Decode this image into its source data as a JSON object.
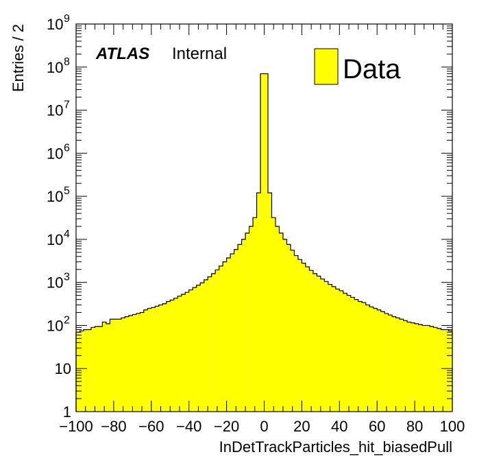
{
  "chart_data": {
    "type": "bar",
    "title": "",
    "xlabel": "InDetTrackParticles_hit_biasedPull",
    "ylabel": "Entries / 2",
    "xlim": [
      -100,
      100
    ],
    "ylim": [
      1,
      1000000000
    ],
    "yscale": "log",
    "bin_width": 2,
    "fill_color": "#ffff00",
    "line_color": "#000000",
    "x_ticks": [
      -100,
      -80,
      -60,
      -40,
      -20,
      0,
      20,
      40,
      60,
      80,
      100
    ],
    "x_tick_labels": [
      "−100",
      "−80",
      "−60",
      "−40",
      "−20",
      "0",
      "20",
      "40",
      "60",
      "80",
      "100"
    ],
    "y_ticks": [
      {
        "value": 1,
        "base": "1",
        "exp": ""
      },
      {
        "value": 10,
        "base": "10",
        "exp": ""
      },
      {
        "value": 100,
        "base": "10",
        "exp": "2"
      },
      {
        "value": 1000,
        "base": "10",
        "exp": "3"
      },
      {
        "value": 10000,
        "base": "10",
        "exp": "4"
      },
      {
        "value": 100000,
        "base": "10",
        "exp": "5"
      },
      {
        "value": 1000000,
        "base": "10",
        "exp": "6"
      },
      {
        "value": 10000000,
        "base": "10",
        "exp": "7"
      },
      {
        "value": 100000000,
        "base": "10",
        "exp": "8"
      },
      {
        "value": 1000000000,
        "base": "10",
        "exp": "9"
      }
    ],
    "annotations": {
      "atlas": "ATLAS",
      "status": "Internal"
    },
    "legend": {
      "position": "top-right",
      "entries": [
        {
          "label": "Data",
          "color": "#ffff00"
        }
      ]
    },
    "series": [
      {
        "name": "Data",
        "bin_edges_start": -100,
        "values": [
          70,
          75,
          80,
          80,
          90,
          95,
          95,
          120,
          110,
          140,
          140,
          140,
          150,
          160,
          170,
          180,
          190,
          200,
          230,
          250,
          260,
          280,
          300,
          320,
          360,
          390,
          430,
          480,
          530,
          590,
          670,
          760,
          860,
          980,
          1150,
          1350,
          1600,
          1950,
          2400,
          3000,
          3700,
          4600,
          5800,
          7600,
          10000,
          14000,
          20000,
          32000,
          120000,
          70000000,
          70000000,
          120000,
          32000,
          20000,
          14000,
          10000,
          7600,
          5600,
          4200,
          3400,
          2800,
          2300,
          1900,
          1600,
          1400,
          1200,
          1050,
          900,
          800,
          700,
          640,
          560,
          500,
          450,
          400,
          360,
          340,
          300,
          270,
          250,
          230,
          210,
          190,
          175,
          160,
          150,
          140,
          130,
          120,
          115,
          110,
          105,
          100,
          100,
          95,
          90,
          85,
          80,
          80,
          75
        ]
      }
    ]
  }
}
